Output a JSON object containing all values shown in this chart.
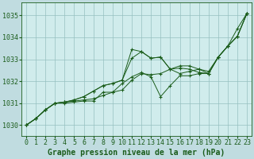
{
  "background_color": "#c0dce0",
  "plot_bg_color": "#d0ecec",
  "grid_color": "#96c0c0",
  "line_color": "#1a5c1a",
  "marker_color": "#1a5c1a",
  "xlabel": "Graphe pression niveau de la mer (hPa)",
  "xlabel_fontsize": 7,
  "tick_fontsize": 6,
  "xlim": [
    -0.5,
    23.5
  ],
  "ylim": [
    1029.5,
    1035.6
  ],
  "yticks": [
    1030,
    1031,
    1032,
    1033,
    1034,
    1035
  ],
  "xticks": [
    0,
    1,
    2,
    3,
    4,
    5,
    6,
    7,
    8,
    9,
    10,
    11,
    12,
    13,
    14,
    15,
    16,
    17,
    18,
    19,
    20,
    21,
    22,
    23
  ],
  "series": [
    [
      1030.0,
      1030.3,
      1030.7,
      1031.0,
      1031.0,
      1031.05,
      1031.1,
      1031.1,
      1031.5,
      1031.5,
      1031.9,
      1032.2,
      1032.4,
      1032.2,
      1031.3,
      1031.8,
      1032.25,
      1032.25,
      1032.35,
      1032.35,
      1033.1,
      1033.6,
      1034.05,
      1035.1
    ],
    [
      1030.0,
      1030.3,
      1030.7,
      1031.0,
      1031.05,
      1031.1,
      1031.15,
      1031.2,
      1031.35,
      1031.5,
      1031.6,
      1032.05,
      1032.35,
      1032.3,
      1032.35,
      1032.55,
      1032.6,
      1032.55,
      1032.4,
      1032.35,
      1033.1,
      1033.6,
      1034.05,
      1035.1
    ],
    [
      1030.0,
      1030.3,
      1030.7,
      1031.0,
      1031.05,
      1031.15,
      1031.3,
      1031.55,
      1031.8,
      1031.9,
      1032.05,
      1033.05,
      1033.35,
      1033.05,
      1033.1,
      1032.55,
      1032.35,
      1032.45,
      1032.55,
      1032.45,
      1033.1,
      1033.6,
      1034.05,
      1035.1
    ],
    [
      1030.0,
      1030.3,
      1030.7,
      1031.0,
      1031.05,
      1031.15,
      1031.3,
      1031.55,
      1031.8,
      1031.9,
      1032.05,
      1033.45,
      1033.35,
      1033.05,
      1033.1,
      1032.55,
      1032.7,
      1032.7,
      1032.55,
      1032.35,
      1033.1,
      1033.6,
      1034.4,
      1035.1
    ]
  ]
}
